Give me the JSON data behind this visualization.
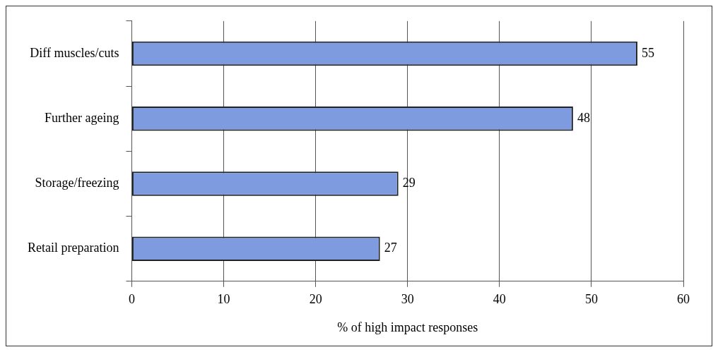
{
  "chart_data": {
    "type": "bar",
    "orientation": "horizontal",
    "categories": [
      "Diff muscles/cuts",
      "Further ageing",
      "Storage/freezing",
      "Retail preparation"
    ],
    "values": [
      55,
      48,
      29,
      27
    ],
    "color": "#7f9be0",
    "xlabel": "% of high impact responses",
    "xlim": [
      0,
      60
    ],
    "xticks": [
      0,
      10,
      20,
      30,
      40,
      50,
      60
    ],
    "grid": "x",
    "data_labels": true,
    "legend": false
  }
}
